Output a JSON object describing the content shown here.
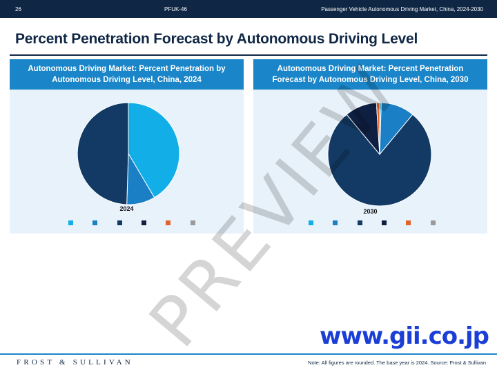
{
  "header": {
    "page_number": "26",
    "code": "PFUK-46",
    "report_title": "Passenger Vehicle Autonomous Driving Market, China, 2024-2030"
  },
  "page_title": "Percent Penetration Forecast by Autonomous Driving Level",
  "watermark": "PREVIEW",
  "gii_logo": "www.gii.co.jp",
  "footer": {
    "brand": "FROST & SULLIVAN",
    "note": "Note: All figures are rounded. The base year is 2024. Source: Frost & Sullivan"
  },
  "colors": {
    "dark_navy": "#0f2745",
    "header_blue": "#1a85c8",
    "panel_bg": "#e8f2fb",
    "gii_blue": "#1b3fd6"
  },
  "legend_colors": [
    "#12aee8",
    "#1a7fc4",
    "#123a64",
    "#0f1f42",
    "#e1642a",
    "#9a9a9a"
  ],
  "chart_data": [
    {
      "type": "pie",
      "title": "Autonomous Driving Market: Percent Penetration by Autonomous Driving Level, China, 2024",
      "year_label": "2024",
      "values": [
        41.5,
        9.0,
        49.5,
        0.0,
        0.0,
        0.0
      ],
      "colors": [
        "#12aee8",
        "#1a7fc4",
        "#123a64",
        "#0f1f42",
        "#e1642a",
        "#9a9a9a"
      ]
    },
    {
      "type": "pie",
      "title": "Autonomous Driving Market: Percent Penetration Forecast by Autonomous Driving Level, China, 2030",
      "year_label": "2030",
      "values": [
        0.5,
        10.5,
        78.0,
        10.0,
        1.0,
        0.0
      ],
      "colors": [
        "#12aee8",
        "#1a7fc4",
        "#123a64",
        "#0f1f42",
        "#e1642a",
        "#9a9a9a"
      ]
    }
  ]
}
